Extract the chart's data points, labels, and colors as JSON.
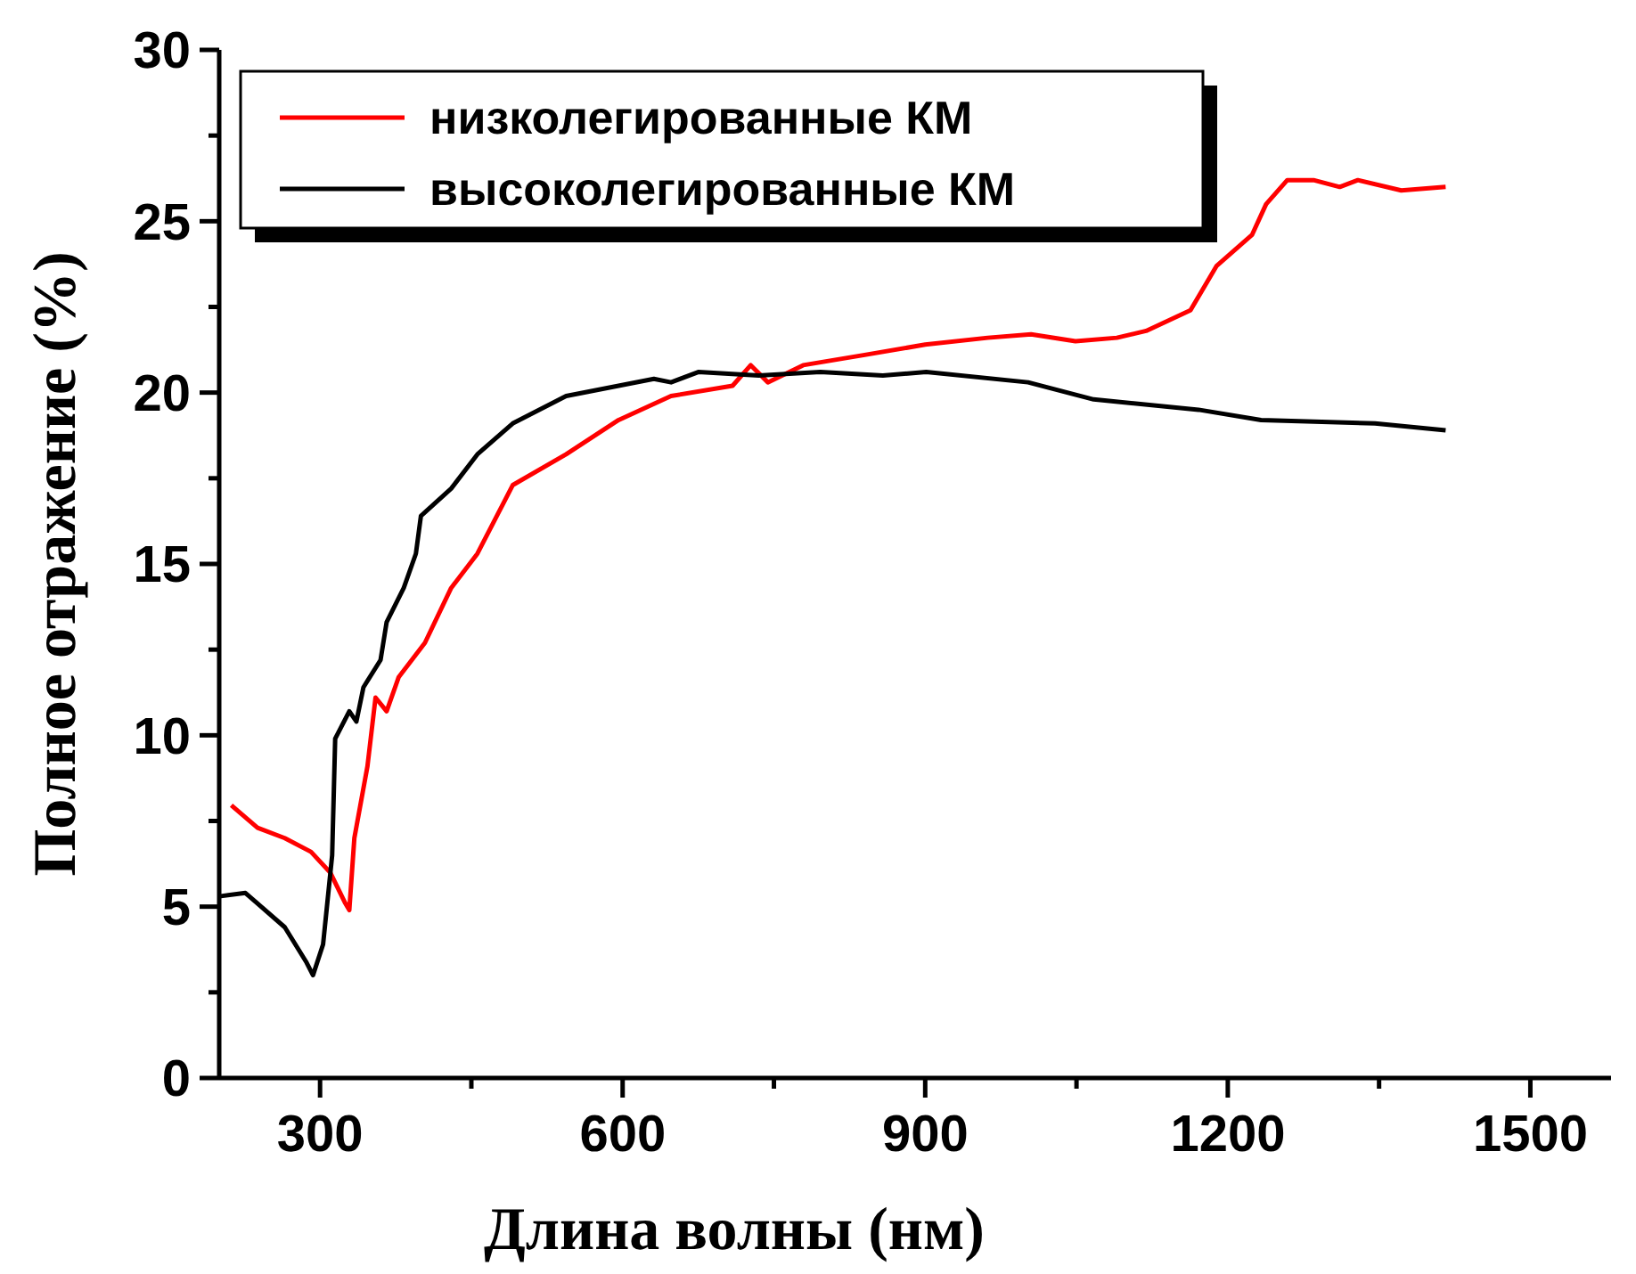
{
  "chart_data": {
    "type": "line",
    "xlabel": "Длина волны (нм)",
    "ylabel": "Полное отражение (%)",
    "xlim": [
      200,
      1580
    ],
    "ylim": [
      0,
      30
    ],
    "xticks": [
      {
        "value": 300,
        "label": "300"
      },
      {
        "value": 450,
        "label": null
      },
      {
        "value": 600,
        "label": "600"
      },
      {
        "value": 750,
        "label": null
      },
      {
        "value": 900,
        "label": "900"
      },
      {
        "value": 1050,
        "label": null
      },
      {
        "value": 1200,
        "label": "1200"
      },
      {
        "value": 1350,
        "label": null
      },
      {
        "value": 1500,
        "label": "1500"
      }
    ],
    "yticks": [
      0,
      {
        "value": 2.5,
        "label": null
      },
      5,
      {
        "value": 7.5,
        "label": null
      },
      10,
      {
        "value": 12.5,
        "label": null
      },
      15,
      {
        "value": 17.5,
        "label": null
      },
      20,
      {
        "value": 22.5,
        "label": null
      },
      25,
      {
        "value": 27.5,
        "label": null
      },
      30
    ],
    "grid": false,
    "legend": "top left",
    "line_style": "solid",
    "marker": "none",
    "series": [
      {
        "name": "низколегированные КМ",
        "color": "#ff0000",
        "x": [
          212,
          238,
          265,
          291,
          310,
          325,
          329,
          334,
          347,
          355,
          366,
          378,
          404,
          430,
          456,
          491,
          544,
          596,
          648,
          709,
          727,
          744,
          779,
          840,
          900,
          962,
          1005,
          1049,
          1090,
          1119,
          1163,
          1189,
          1224,
          1238,
          1259,
          1285,
          1311,
          1329,
          1372,
          1416
        ],
        "values": [
          7.96,
          7.3,
          7.0,
          6.6,
          6.0,
          5.1,
          4.9,
          7.0,
          9.1,
          11.1,
          10.7,
          11.7,
          12.7,
          14.3,
          15.3,
          17.3,
          18.2,
          19.2,
          19.9,
          20.2,
          20.8,
          20.3,
          20.8,
          21.1,
          21.4,
          21.6,
          21.7,
          21.5,
          21.6,
          21.8,
          22.4,
          23.7,
          24.6,
          25.5,
          26.2,
          26.2,
          26.0,
          26.2,
          25.9,
          26.0
        ]
      },
      {
        "name": "высоколегированные КМ",
        "color": "#000000",
        "x": [
          200,
          226,
          265,
          286,
          293,
          303,
          312,
          315,
          329,
          336,
          343,
          360,
          366,
          383,
          395,
          400,
          430,
          456,
          491,
          544,
          596,
          631,
          648,
          675,
          735,
          796,
          858,
          901,
          1002,
          1067,
          1171,
          1233,
          1346,
          1416
        ],
        "values": [
          5.3,
          5.4,
          4.4,
          3.4,
          3.0,
          3.9,
          6.5,
          9.9,
          10.7,
          10.4,
          11.4,
          12.2,
          13.3,
          14.3,
          15.3,
          16.4,
          17.2,
          18.2,
          19.1,
          19.9,
          20.2,
          20.4,
          20.3,
          20.6,
          20.5,
          20.6,
          20.5,
          20.6,
          20.3,
          19.8,
          19.5,
          19.2,
          19.1,
          18.9
        ]
      }
    ]
  }
}
